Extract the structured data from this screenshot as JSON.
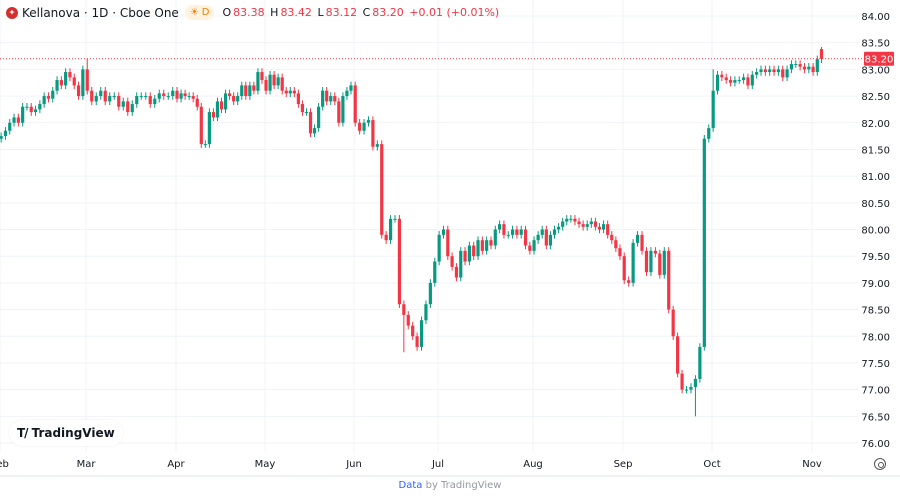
{
  "header": {
    "symbol": "Kellanova · 1D · Cboe One",
    "session_badge": "D",
    "open_label": "O",
    "open": "83.38",
    "high_label": "H",
    "high": "83.42",
    "low_label": "L",
    "low": "83.12",
    "close_label": "C",
    "close": "83.20",
    "change": "+0.01 (+0.01%)"
  },
  "branding": {
    "logo_text": "TradingView"
  },
  "footer": {
    "link": "Data",
    "suffix": "by TradingView"
  },
  "colors": {
    "up": "#089981",
    "down": "#f23645",
    "grid": "#f0f3fa",
    "last_price": "#f23645"
  },
  "icons": {
    "settings": "gear-icon",
    "logo": "tradingview-logo-icon",
    "symbol": "kellanova-logo-icon"
  },
  "chart_data": {
    "type": "candlestick",
    "title": "Kellanova · 1D · Cboe One",
    "last_price": 83.2,
    "last_price_label": "83.20",
    "ylim": [
      75.8,
      84.2
    ],
    "y_ticks": [
      "84.00",
      "83.50",
      "83.00",
      "82.50",
      "82.00",
      "81.50",
      "81.00",
      "80.50",
      "80.00",
      "79.50",
      "79.00",
      "78.50",
      "78.00",
      "77.50",
      "77.00",
      "76.50",
      "76.00"
    ],
    "x_ticks": [
      "Feb",
      "Mar",
      "Apr",
      "May",
      "Jun",
      "Jul",
      "Aug",
      "Sep",
      "Oct",
      "Nov"
    ],
    "grid": true,
    "months": [
      {
        "month": "Feb",
        "closes": [
          81.75,
          81.85,
          82.0,
          82.1,
          82.0,
          82.3,
          82.3,
          82.2,
          82.25,
          82.35,
          82.5,
          82.45,
          82.6,
          82.8,
          82.7,
          82.95,
          82.85,
          82.7,
          82.5,
          83.0
        ]
      },
      {
        "month": "Mar",
        "closes": [
          82.6,
          82.4,
          82.5,
          82.6,
          82.4,
          82.5,
          82.5,
          82.3,
          82.4,
          82.2,
          82.35,
          82.5,
          82.5,
          82.5,
          82.35,
          82.45,
          82.55,
          82.5,
          82.5,
          82.6
        ]
      },
      {
        "month": "Apr",
        "closes": [
          82.45,
          82.55,
          82.5,
          82.5,
          82.45,
          82.3,
          81.6,
          81.6,
          82.2,
          82.1,
          82.4,
          82.25,
          82.55,
          82.5,
          82.4,
          82.5,
          82.7,
          82.5,
          82.7,
          82.6,
          82.95,
          82.8
        ]
      },
      {
        "month": "May",
        "closes": [
          82.6,
          82.9,
          82.7,
          82.85,
          82.6,
          82.55,
          82.6,
          82.55,
          82.35,
          82.2,
          82.2,
          81.8,
          81.9,
          82.3,
          82.6,
          82.4,
          82.5,
          82.4,
          82.0,
          82.5,
          82.6,
          82.7
        ]
      },
      {
        "month": "Jun",
        "closes": [
          82.0,
          81.85,
          82.0,
          82.05,
          81.55,
          81.6,
          79.9,
          79.8,
          80.2,
          80.2,
          78.6,
          78.4,
          78.2,
          78.0,
          77.8,
          78.3,
          78.6,
          79.0,
          79.4
        ]
      },
      {
        "month": "Jul",
        "closes": [
          79.9,
          80.0,
          79.5,
          79.3,
          79.1,
          79.6,
          79.4,
          79.7,
          79.5,
          79.8,
          79.6,
          79.8,
          79.7,
          80.0,
          80.1,
          79.9,
          79.9,
          80.0,
          79.9,
          80.0,
          79.7,
          79.6
        ]
      },
      {
        "month": "Aug",
        "closes": [
          79.8,
          79.9,
          80.0,
          79.7,
          79.9,
          80.0,
          80.05,
          80.15,
          80.2,
          80.2,
          80.15,
          80.1,
          80.05,
          80.1,
          80.15,
          80.05,
          80.0,
          80.1,
          79.9,
          79.8,
          79.65,
          79.5
        ]
      },
      {
        "month": "Sep",
        "closes": [
          79.05,
          79.0,
          79.75,
          79.9,
          79.6,
          79.2,
          79.6,
          79.55,
          79.15,
          79.6,
          78.5,
          78.0,
          77.3,
          77.0,
          77.0,
          77.05,
          77.2,
          77.8,
          81.7,
          81.9
        ]
      },
      {
        "month": "Oct",
        "closes": [
          82.6,
          82.9,
          82.85,
          82.8,
          82.75,
          82.8,
          82.8,
          82.85,
          82.7,
          82.9,
          82.95,
          83.0,
          82.95,
          83.0,
          82.95,
          83.0,
          82.85,
          83.0,
          83.1,
          83.1,
          83.05,
          83.0,
          83.05
        ]
      },
      {
        "month": "Nov",
        "closes": [
          82.95,
          83.19,
          83.2
        ]
      }
    ],
    "last_candle": {
      "open": 83.38,
      "high": 83.42,
      "low": 83.12,
      "close": 83.2
    },
    "notable_wicks": [
      {
        "month": "Mar",
        "index": 0,
        "high": 83.2
      },
      {
        "month": "Jun",
        "index": 11,
        "low": 77.7
      },
      {
        "month": "Sep",
        "index": 16,
        "low": 76.5
      },
      {
        "month": "Oct",
        "index": 0,
        "high": 83.0
      }
    ]
  }
}
